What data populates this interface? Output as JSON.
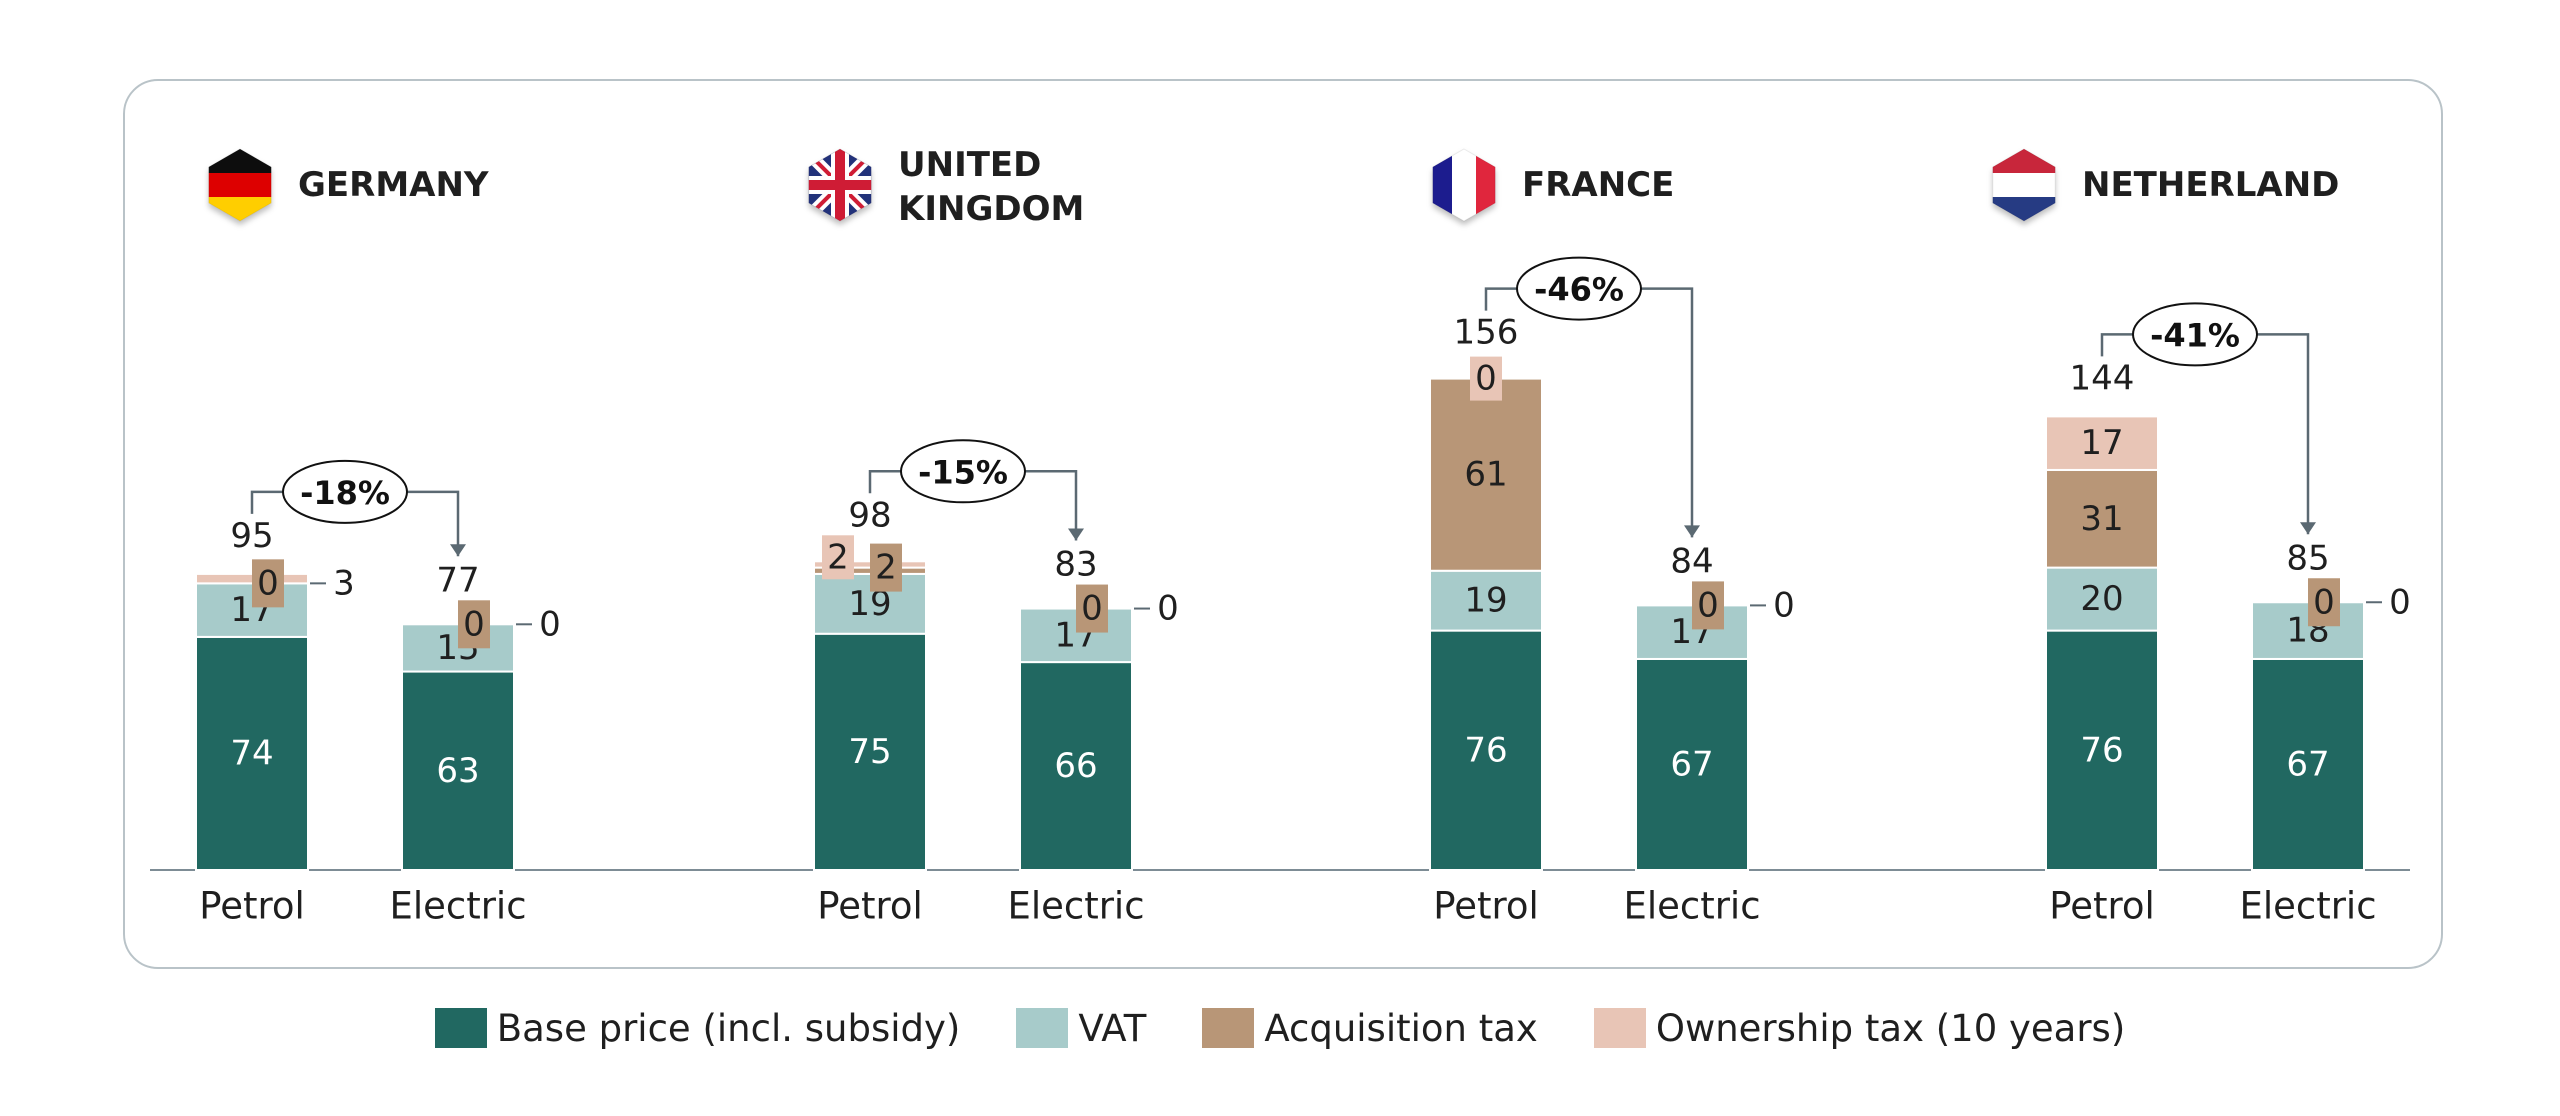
{
  "chart_data": {
    "type": "bar",
    "stacked": true,
    "groups": [
      {
        "country": "GERMANY",
        "flag": "germany-flag-icon",
        "change": "-18%",
        "bars": [
          {
            "category": "Petrol",
            "total": 95,
            "values": {
              "base": 74,
              "vat": 17,
              "acquisition": 0,
              "ownership": 3
            }
          },
          {
            "category": "Electric",
            "total": 77,
            "values": {
              "base": 63,
              "vat": 15,
              "acquisition": 0,
              "ownership": 0
            }
          }
        ]
      },
      {
        "country": "UNITED KINGDOM",
        "country_lines": [
          "UNITED",
          "KINGDOM"
        ],
        "flag": "uk-flag-icon",
        "change": "-15%",
        "bars": [
          {
            "category": "Petrol",
            "total": 98,
            "values": {
              "base": 75,
              "vat": 19,
              "acquisition": 2,
              "ownership": 2
            }
          },
          {
            "category": "Electric",
            "total": 83,
            "values": {
              "base": 66,
              "vat": 17,
              "acquisition": 0,
              "ownership": 0
            }
          }
        ]
      },
      {
        "country": "FRANCE",
        "flag": "france-flag-icon",
        "change": "-46%",
        "bars": [
          {
            "category": "Petrol",
            "total": 156,
            "values": {
              "base": 76,
              "vat": 19,
              "acquisition": 61,
              "ownership": 0
            }
          },
          {
            "category": "Electric",
            "total": 84,
            "values": {
              "base": 67,
              "vat": 17,
              "acquisition": 0,
              "ownership": 0
            }
          }
        ]
      },
      {
        "country": "NETHERLAND",
        "flag": "netherlands-flag-icon",
        "change": "-41%",
        "bars": [
          {
            "category": "Petrol",
            "total": 144,
            "values": {
              "base": 76,
              "vat": 20,
              "acquisition": 31,
              "ownership": 17
            }
          },
          {
            "category": "Electric",
            "total": 85,
            "values": {
              "base": 67,
              "vat": 18,
              "acquisition": 0,
              "ownership": 0
            }
          }
        ]
      }
    ],
    "series": [
      {
        "key": "base",
        "name": "Base price (incl. subsidy)",
        "color": "#216861",
        "label_color": "#ffffff"
      },
      {
        "key": "vat",
        "name": "VAT",
        "color": "#a7cbca",
        "label_color": "#1f1f1f"
      },
      {
        "key": "acquisition",
        "name": "Acquisition tax",
        "color": "#b89677",
        "label_color": "#1f1f1f"
      },
      {
        "key": "ownership",
        "name": "Ownership tax (10 years)",
        "color": "#e8c5b6",
        "label_color": "#1f1f1f"
      }
    ],
    "legend_position": "bottom",
    "grid": false
  },
  "colors": {
    "frame": "#b9c3c8",
    "baseline": "#7d8c95",
    "arrow": "#5b6972"
  }
}
